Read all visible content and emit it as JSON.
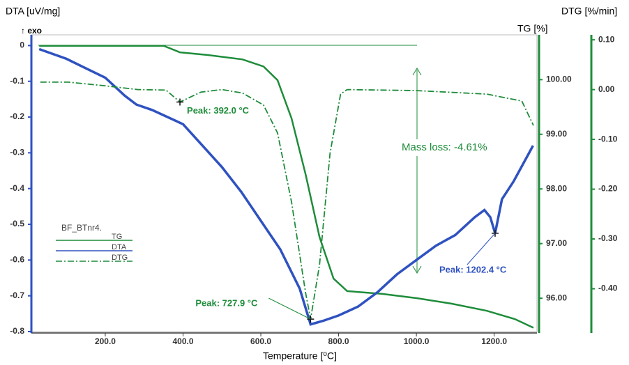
{
  "chart_data": {
    "type": "line",
    "x_label": "Temperature [⁰C]",
    "y_label": "DTA [uV/mg]",
    "y_note": "↑ exo",
    "y2_label": "TG [%]",
    "y3_label": "DTG [%/min]",
    "legend_title": "BF_BTnr4.",
    "xlim": [
      10,
      1310
    ],
    "xticks": [
      {
        "value": 200,
        "label": "200.0"
      },
      {
        "value": 400,
        "label": "400.0"
      },
      {
        "value": 600,
        "label": "600.0"
      },
      {
        "value": 800,
        "label": "800.0"
      },
      {
        "value": 1000,
        "label": "1000.0"
      },
      {
        "value": 1200,
        "label": "1200.0"
      }
    ],
    "ylim": [
      -0.8,
      0.03
    ],
    "yticks": [
      0,
      -0.1,
      -0.2,
      -0.3,
      -0.4,
      -0.5,
      -0.6,
      -0.7,
      -0.8
    ],
    "y2lim": [
      95.39,
      100.82
    ],
    "y2ticks": [
      {
        "value": 100,
        "label": "100.00"
      },
      {
        "value": 99,
        "label": "99.00"
      },
      {
        "value": 98,
        "label": "98.00"
      },
      {
        "value": 97,
        "label": "97.00"
      },
      {
        "value": 96,
        "label": "96.00"
      }
    ],
    "y3lim": [
      -0.486,
      0.11
    ],
    "y3ticks": [
      {
        "value": 0.1,
        "label": "0.10"
      },
      {
        "value": 0,
        "label": "0.00"
      },
      {
        "value": -0.1,
        "label": "-0.10"
      },
      {
        "value": -0.2,
        "label": "-0.20"
      },
      {
        "value": -0.3,
        "label": "-0.30"
      },
      {
        "value": -0.4,
        "label": "-0.40"
      }
    ],
    "axis_colors": {
      "y": "#2f52c0",
      "y2": "#1e8c3a",
      "y3": "#1e8c3a"
    },
    "series": [
      {
        "name": "TG",
        "color": "#1e8c3a",
        "axis": "y2",
        "dash": "solid",
        "x": [
          30,
          350,
          392,
          464,
          553,
          607,
          643,
          679,
          715,
          751,
          787,
          822,
          912,
          1002,
          1091,
          1181,
          1253,
          1301
        ],
        "values": [
          100.62,
          100.62,
          100.5,
          100.45,
          100.37,
          100.24,
          99.99,
          99.29,
          98.27,
          97.12,
          96.36,
          96.13,
          96.08,
          96.0,
          95.9,
          95.77,
          95.62,
          95.46
        ]
      },
      {
        "name": "DTA",
        "color": "#2f52c0",
        "axis": "y",
        "dash": "solid",
        "x": [
          30,
          100,
          200,
          250,
          280,
          320,
          400,
          450,
          500,
          550,
          600,
          650,
          700,
          727.9,
          760,
          800,
          850,
          900,
          950,
          1000,
          1050,
          1100,
          1150,
          1175,
          1190,
          1202.4,
          1220,
          1250,
          1300
        ],
        "values": [
          -0.01,
          -0.037,
          -0.09,
          -0.14,
          -0.165,
          -0.18,
          -0.22,
          -0.28,
          -0.34,
          -0.41,
          -0.49,
          -0.57,
          -0.68,
          -0.78,
          -0.77,
          -0.755,
          -0.73,
          -0.69,
          -0.64,
          -0.6,
          -0.56,
          -0.53,
          -0.48,
          -0.46,
          -0.48,
          -0.525,
          -0.43,
          -0.38,
          -0.28
        ]
      },
      {
        "name": "DTG",
        "color": "#1e8c3a",
        "axis": "y3",
        "dash": "dashdot",
        "x": [
          33,
          105,
          195,
          284,
          356,
          392,
          446,
          500,
          553,
          607,
          643,
          679,
          715,
          727.9,
          751,
          778,
          805,
          822,
          1002,
          1181,
          1271,
          1301
        ],
        "values": [
          0.015,
          0.015,
          0.008,
          0.0,
          -0.001,
          -0.025,
          -0.005,
          0.0,
          -0.007,
          -0.031,
          -0.087,
          -0.226,
          -0.408,
          -0.461,
          -0.352,
          -0.128,
          -0.009,
          0.0,
          -0.002,
          -0.009,
          -0.023,
          -0.072
        ]
      }
    ],
    "annotations": [
      {
        "text": "Peak: 392.0 °C",
        "x": 392,
        "y": -0.025,
        "axis": "y3",
        "color": "#1e8c3a"
      },
      {
        "text": "Peak: 727.9 °C",
        "x": 727.9,
        "y": -0.461,
        "axis": "y3",
        "color": "#1e8c3a"
      },
      {
        "text": "Peak: 1202.4 °C",
        "x": 1202.4,
        "y": -0.525,
        "axis": "y",
        "color": "#2f52c0"
      }
    ],
    "mass_loss_text": "Mass loss: -4.61%"
  }
}
